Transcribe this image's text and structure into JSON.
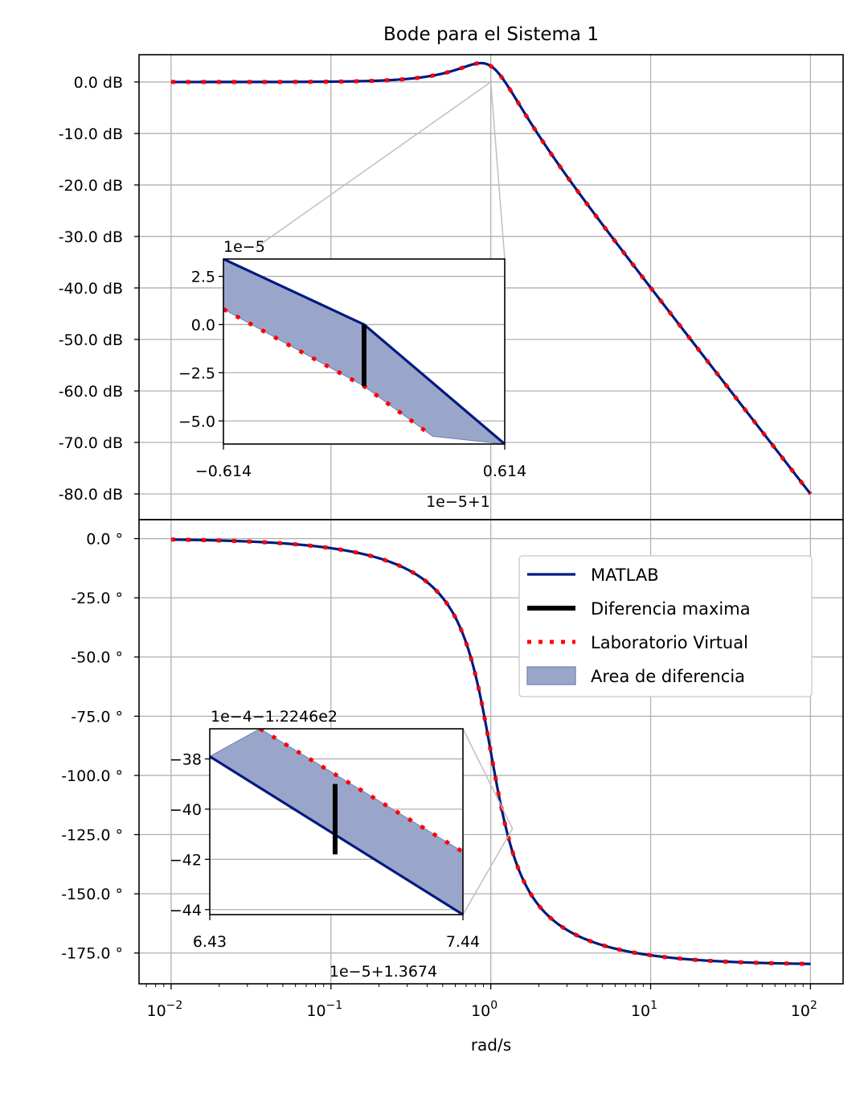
{
  "chart_data": [
    {
      "type": "line",
      "panel": "magnitude",
      "title": "Bode para el Sistema 1",
      "xscale": "log",
      "xlim": [
        0.0063,
        160
      ],
      "ylim": [
        -85,
        5.3
      ],
      "yticks": [
        0,
        -10,
        -20,
        -30,
        -40,
        -50,
        -60,
        -70,
        -80
      ],
      "ytick_labels": [
        "0.0 dB",
        "-10.0 dB",
        "-20.0 dB",
        "-30.0 dB",
        "-40.0 dB",
        "-50.0 dB",
        "-60.0 dB",
        "-70.0 dB",
        "-80.0 dB"
      ],
      "grid": true,
      "system": {
        "wn": 1.0,
        "zeta": 0.35
      },
      "x_range": [
        0.01,
        100
      ],
      "series": [
        {
          "name": "MATLAB",
          "color": "#001a80",
          "style": "solid"
        },
        {
          "name": "Laboratorio Virtual",
          "color": "#ff0000",
          "style": "dotted"
        }
      ],
      "inset": {
        "xlim": [
          -0.614,
          0.614
        ],
        "ylim": [
          -6.2,
          3.4
        ],
        "xtick_labels": [
          "−0.614",
          "0.614"
        ],
        "xtick_values": [
          -0.614,
          0.614
        ],
        "yticks": [
          2.5,
          0,
          -2.5,
          -5
        ],
        "ytick_labels": [
          "2.5",
          "0.0",
          "−2.5",
          "−5.0"
        ],
        "x_offset_label": "1e−5+1",
        "y_scale_label": "1e−5",
        "matlab_points": [
          [
            -0.614,
            3.4
          ],
          [
            0,
            0
          ],
          [
            0.614,
            -6.2
          ]
        ],
        "virtual_points": [
          [
            -0.614,
            0.8
          ],
          [
            0,
            -3.2
          ],
          [
            0.3,
            -5.8
          ]
        ],
        "max_diff": {
          "x": 0,
          "y1": 0,
          "y2": -3.2
        }
      }
    },
    {
      "type": "line",
      "panel": "phase",
      "xscale": "log",
      "xlabel": "rad/s",
      "xlim": [
        0.0063,
        160
      ],
      "ylim": [
        -188,
        8
      ],
      "xticks": [
        0.01,
        0.1,
        1,
        10,
        100
      ],
      "xtick_bases": [
        "10",
        "10",
        "10",
        "10",
        "10"
      ],
      "xtick_exps": [
        "−2",
        "−1",
        "0",
        "1",
        "2"
      ],
      "yticks": [
        0,
        -25,
        -50,
        -75,
        -100,
        -125,
        -150,
        -175
      ],
      "ytick_labels": [
        "0.0 °",
        "-25.0 °",
        "-50.0 °",
        "-75.0 °",
        "-100.0 °",
        "-125.0 °",
        "-150.0 °",
        "-175.0 °"
      ],
      "grid": true,
      "legend": {
        "placement": "upper right",
        "entries": [
          "MATLAB",
          "Diferencia maxima",
          "Laboratorio Virtual",
          "Area de diferencia"
        ]
      },
      "inset": {
        "xlim": [
          6.43,
          7.44
        ],
        "ylim": [
          -44.2,
          -36.8
        ],
        "xtick_labels": [
          "6.43",
          "7.44"
        ],
        "xtick_values": [
          6.43,
          7.44
        ],
        "yticks": [
          -38,
          -40,
          -42,
          -44
        ],
        "ytick_labels": [
          "−38",
          "−40",
          "−42",
          "−44"
        ],
        "x_offset_label": "1e−5+1.3674",
        "y_scale_label": "1e−4−1.2246e2",
        "matlab_points": [
          [
            6.43,
            -37.9
          ],
          [
            7.44,
            -44.2
          ]
        ],
        "virtual_points": [
          [
            6.63,
            -36.8
          ],
          [
            7.44,
            -41.7
          ]
        ],
        "max_diff": {
          "x": 6.93,
          "y1": -39.0,
          "y2": -41.8
        }
      }
    }
  ]
}
